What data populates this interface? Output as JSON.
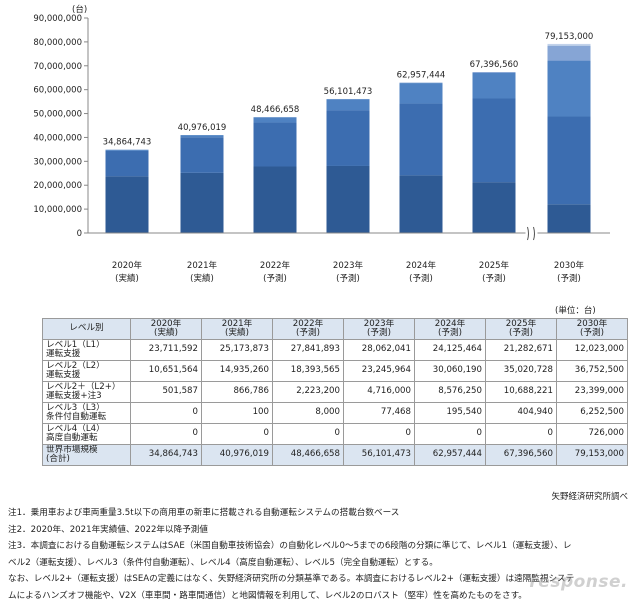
{
  "chart_data": {
    "type": "bar",
    "stacked": true,
    "ylabel": "(台)",
    "ylim": [
      0,
      90000000
    ],
    "yticks": [
      "0",
      "10,000,000",
      "20,000,000",
      "30,000,000",
      "40,000,000",
      "50,000,000",
      "60,000,000",
      "70,000,000",
      "80,000,000",
      "90,000,000"
    ],
    "categories": [
      {
        "year": "2020年",
        "status": "(実績)"
      },
      {
        "year": "2021年",
        "status": "(実績)"
      },
      {
        "year": "2022年",
        "status": "(予測)"
      },
      {
        "year": "2023年",
        "status": "(予測)"
      },
      {
        "year": "2024年",
        "status": "(予測)"
      },
      {
        "year": "2025年",
        "status": "(予測)"
      },
      {
        "year": "2030年",
        "status": "(予測)"
      }
    ],
    "series": [
      {
        "values": [
          23711592,
          25173873,
          27841893,
          28062041,
          24125464,
          21282671,
          12023000
        ],
        "color": "#2e5a94"
      },
      {
        "values": [
          10651564,
          14935260,
          18393565,
          23245964,
          30060190,
          35020728,
          36752500
        ],
        "color": "#3c6db0"
      },
      {
        "values": [
          501587,
          866786,
          2223200,
          4716000,
          8576250,
          10688221,
          23399000
        ],
        "color": "#4f82c2"
      },
      {
        "values": [
          0,
          100,
          8000,
          77468,
          195540,
          404940,
          6252500
        ],
        "color": "#86a5d5"
      },
      {
        "values": [
          0,
          0,
          0,
          0,
          0,
          0,
          726000
        ],
        "color": "#c2d2ea"
      }
    ],
    "totals": [
      "34,864,743",
      "40,976,019",
      "48,466,658",
      "56,101,473",
      "62,957,444",
      "67,396,560",
      "79,153,000"
    ],
    "axis_break_after_index": 5,
    "grid": false,
    "legend": "none"
  },
  "unit_note": "(単位：台)",
  "table": {
    "header_label": "レベル別",
    "columns": [
      "2020年\n(実績)",
      "2021年\n(実績)",
      "2022年\n(予測)",
      "2023年\n(予測)",
      "2024年\n(予測)",
      "2025年\n(予測)",
      "2030年\n(予測)"
    ],
    "rows": [
      {
        "label": "レベル1（L1）\n運転支援",
        "values": [
          "23,711,592",
          "25,173,873",
          "27,841,893",
          "28,062,041",
          "24,125,464",
          "21,282,671",
          "12,023,000"
        ]
      },
      {
        "label": "レベル2（L2）\n運転支援",
        "values": [
          "10,651,564",
          "14,935,260",
          "18,393,565",
          "23,245,964",
          "30,060,190",
          "35,020,728",
          "36,752,500"
        ]
      },
      {
        "label": "レベル2＋（L2+）\n運転支援+注3",
        "values": [
          "501,587",
          "866,786",
          "2,223,200",
          "4,716,000",
          "8,576,250",
          "10,688,221",
          "23,399,000"
        ]
      },
      {
        "label": "レベル3（L3）\n条件付自動運転",
        "values": [
          "0",
          "100",
          "8,000",
          "77,468",
          "195,540",
          "404,940",
          "6,252,500"
        ]
      },
      {
        "label": "レベル4（L4）\n高度自動運転",
        "values": [
          "0",
          "0",
          "0",
          "0",
          "0",
          "0",
          "726,000"
        ]
      }
    ],
    "total": {
      "label": "世界市場規模\n(合計)",
      "values": [
        "34,864,743",
        "40,976,019",
        "48,466,658",
        "56,101,473",
        "62,957,444",
        "67,396,560",
        "79,153,000"
      ]
    }
  },
  "source": "矢野経済研究所調べ",
  "notes": [
    "注1．乗用車および車両重量3.5t以下の商用車の新車に搭載される自動運転システムの搭載台数ベース",
    "注2．2020年、2021年実績値、2022年以降予測値",
    "注3．本調査における自動運転システムはSAE（米国自動車技術協会）の自動化レベル0～5までの6段階の分類に準じて、レベル1（運転支援）、レ",
    "ベル2（運転支援）、レベル3（条件付自動運転）、レベル4（高度自動運転）、レベル5（完全自動運転）とする。",
    "なお、レベル2+（運転支援）はSEAの定義にはなく、矢野経済研究所の分類基準である。本調査におけるレベル2+（運転支援）は遠隔監視システ",
    "ムによるハンズオフ機能や、V2X（車車間・路車間通信）と地図情報を利用して、レベル2のロバスト（堅牢）性を高めたものをさす。"
  ],
  "watermark": "response."
}
